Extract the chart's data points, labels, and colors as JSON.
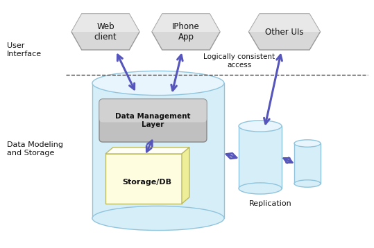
{
  "bg_color": "#ffffff",
  "arrow_color": "#5555bb",
  "user_interface_label": "User\nInterface",
  "data_modeling_label": "Data Modeling\nand Storage",
  "logically_consistent_label": "Logically consistent\naccess",
  "web_client_label": "Web\nclient",
  "iphone_app_label": "IPhone\nApp",
  "other_uis_label": "Other UIs",
  "data_management_label": "Data Management\nLayer",
  "storage_db_label": "Storage/DB",
  "replication_label": "Replication",
  "cylinder_face": "#d6eef8",
  "cylinder_top": "#e8f5fc",
  "cylinder_border": "#90c4dc",
  "box_face": "#fffde0",
  "box_top": "#fffff5",
  "box_side": "#eeee99",
  "box_border": "#bbbb66",
  "dml_face": "#c0c0c0",
  "dml_face_top": "#e0e0e0",
  "hex_face": "#d8d8d8",
  "hex_face_top": "#f0f0f0",
  "hex_border": "#999999"
}
